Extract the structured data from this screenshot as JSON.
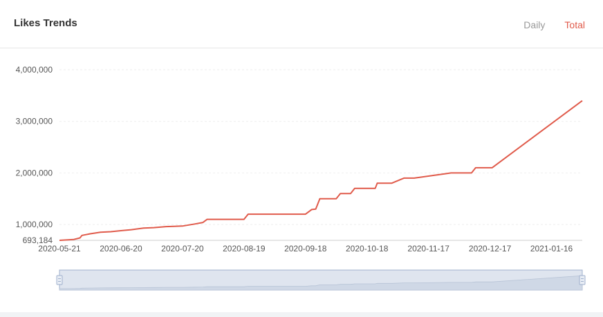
{
  "header": {
    "title": "Likes Trends",
    "tabs": [
      {
        "label": "Daily",
        "active": false
      },
      {
        "label": "Total",
        "active": true
      }
    ]
  },
  "colors": {
    "line": "#e05a4a",
    "active_tab": "#e05a4a",
    "inactive_tab": "#999999",
    "slider_fill": "#dfe5ef",
    "slider_border": "#9fb0cc"
  },
  "chart_data": {
    "type": "line",
    "title": "",
    "xlabel": "",
    "ylabel": "",
    "ylim": [
      693184,
      4000000
    ],
    "grid": true,
    "yticks": [
      {
        "value": 693184,
        "label": "693,184"
      },
      {
        "value": 1000000,
        "label": "1,000,000"
      },
      {
        "value": 2000000,
        "label": "2,000,000"
      },
      {
        "value": 3000000,
        "label": "3,000,000"
      },
      {
        "value": 4000000,
        "label": "4,000,000"
      }
    ],
    "xticks": [
      "2020-05-21",
      "2020-06-20",
      "2020-07-20",
      "2020-08-19",
      "2020-09-18",
      "2020-10-18",
      "2020-11-17",
      "2020-12-17",
      "2021-01-16"
    ],
    "x_range": [
      "2020-05-21",
      "2021-01-31"
    ],
    "series": [
      {
        "points": [
          [
            "2020-05-21",
            693184
          ],
          [
            "2020-05-28",
            710000
          ],
          [
            "2020-05-31",
            740000
          ],
          [
            "2020-06-01",
            790000
          ],
          [
            "2020-06-05",
            820000
          ],
          [
            "2020-06-10",
            850000
          ],
          [
            "2020-06-15",
            860000
          ],
          [
            "2020-06-20",
            880000
          ],
          [
            "2020-06-25",
            900000
          ],
          [
            "2020-07-01",
            930000
          ],
          [
            "2020-07-06",
            940000
          ],
          [
            "2020-07-12",
            960000
          ],
          [
            "2020-07-20",
            970000
          ],
          [
            "2020-07-26",
            1010000
          ],
          [
            "2020-07-30",
            1040000
          ],
          [
            "2020-08-01",
            1100000
          ],
          [
            "2020-08-10",
            1100000
          ],
          [
            "2020-08-19",
            1100000
          ],
          [
            "2020-08-21",
            1200000
          ],
          [
            "2020-09-01",
            1200000
          ],
          [
            "2020-09-15",
            1200000
          ],
          [
            "2020-09-18",
            1200000
          ],
          [
            "2020-09-21",
            1290000
          ],
          [
            "2020-09-23",
            1300000
          ],
          [
            "2020-09-25",
            1500000
          ],
          [
            "2020-10-03",
            1500000
          ],
          [
            "2020-10-05",
            1600000
          ],
          [
            "2020-10-10",
            1600000
          ],
          [
            "2020-10-12",
            1700000
          ],
          [
            "2020-10-22",
            1700000
          ],
          [
            "2020-10-23",
            1800000
          ],
          [
            "2020-10-30",
            1800000
          ],
          [
            "2020-11-05",
            1900000
          ],
          [
            "2020-11-10",
            1900000
          ],
          [
            "2020-11-28",
            2000000
          ],
          [
            "2020-12-08",
            2000000
          ],
          [
            "2020-12-10",
            2100000
          ],
          [
            "2020-12-18",
            2100000
          ],
          [
            "2021-01-31",
            3400000
          ]
        ]
      }
    ]
  }
}
